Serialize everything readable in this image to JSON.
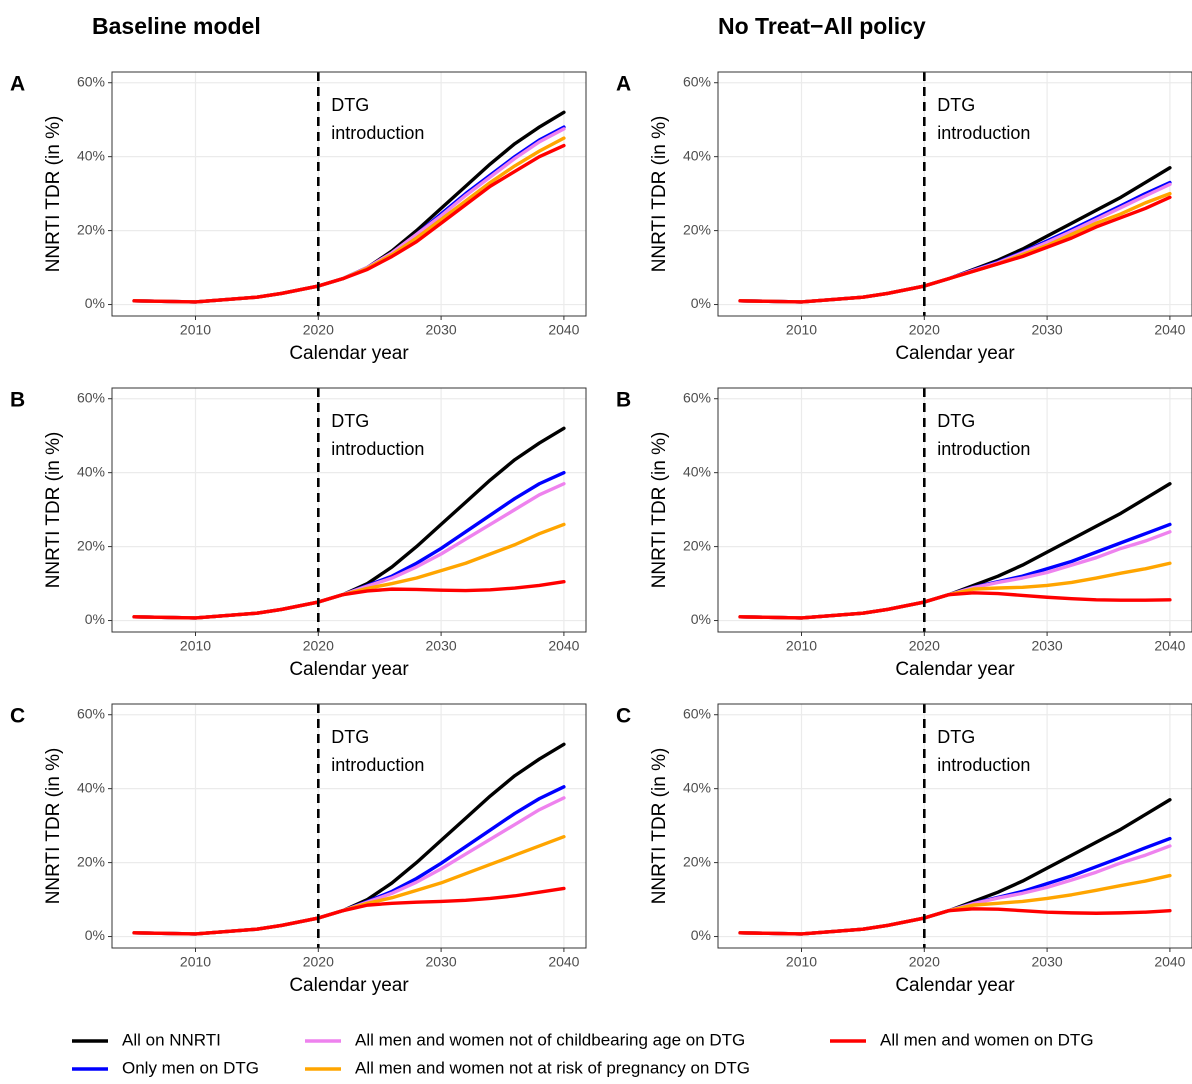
{
  "column_titles": [
    "Baseline model",
    "No Treat−All policy"
  ],
  "legend": [
    {
      "name": "All on NNRTI",
      "color": "#000000"
    },
    {
      "name": "Only men on DTG",
      "color": "#0000ff"
    },
    {
      "name": "All men and women not of childbearing age on DTG",
      "color": "#ee82ee"
    },
    {
      "name": "All men and women not at risk of pregnancy on DTG",
      "color": "#ffa500"
    },
    {
      "name": "All men and women on DTG",
      "color": "#ff0000"
    }
  ],
  "chart_data": [
    {
      "type": "line",
      "panel": "A",
      "xlabel": "Calendar year",
      "ylabel": "NNRTI TDR (in %)",
      "annotation": {
        "x": 2020,
        "lines": [
          "DTG",
          "introduction"
        ]
      },
      "x": [
        2005,
        2010,
        2015,
        2017,
        2020,
        2022,
        2024,
        2026,
        2028,
        2030,
        2032,
        2034,
        2036,
        2038,
        2040
      ],
      "series": [
        {
          "values": [
            1,
            0.7,
            2,
            3,
            5,
            7,
            10,
            14.5,
            20,
            26,
            32,
            38,
            43.5,
            48,
            52
          ]
        },
        {
          "values": [
            1,
            0.7,
            2,
            3,
            5,
            7,
            10,
            14,
            19,
            24.5,
            30,
            35,
            40,
            44.5,
            48
          ]
        },
        {
          "values": [
            1,
            0.7,
            2,
            3,
            5,
            7,
            10,
            14,
            19,
            24,
            29.5,
            34.5,
            39.5,
            44,
            47.5
          ]
        },
        {
          "values": [
            1,
            0.7,
            2,
            3,
            5,
            7,
            9.8,
            13.5,
            18,
            23,
            28,
            33,
            37.5,
            41.5,
            45
          ]
        },
        {
          "values": [
            1,
            0.7,
            2,
            3,
            5,
            7,
            9.5,
            13,
            17,
            22,
            27,
            32,
            36,
            40,
            43
          ]
        }
      ],
      "xlim": [
        2003.2,
        2041.8
      ],
      "ylim": [
        -3.1,
        62.9
      ],
      "xticks": [
        2010,
        2020,
        2030,
        2040
      ],
      "yticks": [
        {
          "value": 0,
          "label": "0%"
        },
        {
          "value": 20,
          "label": "20%"
        },
        {
          "value": 40,
          "label": "40%"
        },
        {
          "value": 60,
          "label": "60%"
        }
      ],
      "grid": true
    },
    {
      "type": "line",
      "panel": "A",
      "xlabel": "Calendar year",
      "ylabel": "NNRTI TDR (in %)",
      "annotation": {
        "x": 2020,
        "lines": [
          "DTG",
          "introduction"
        ]
      },
      "x": [
        2005,
        2010,
        2015,
        2017,
        2020,
        2022,
        2024,
        2026,
        2028,
        2030,
        2032,
        2034,
        2036,
        2038,
        2040
      ],
      "series": [
        {
          "values": [
            1,
            0.7,
            2,
            3,
            5,
            7,
            9.5,
            12,
            15,
            18.5,
            22,
            25.5,
            29,
            33,
            37
          ]
        },
        {
          "values": [
            1,
            0.7,
            2,
            3,
            5,
            7,
            9.3,
            11.5,
            14.2,
            17.2,
            20.3,
            23.5,
            26.7,
            30,
            33
          ]
        },
        {
          "values": [
            1,
            0.7,
            2,
            3,
            5,
            7,
            9.2,
            11.3,
            14,
            16.8,
            19.8,
            23,
            26.2,
            29.4,
            32.5
          ]
        },
        {
          "values": [
            1,
            0.7,
            2,
            3,
            5,
            7,
            9,
            11,
            13.5,
            16,
            19,
            22,
            24.5,
            27.5,
            30
          ]
        },
        {
          "values": [
            1,
            0.7,
            2,
            3,
            5,
            7,
            9,
            11,
            13,
            15.5,
            18,
            21,
            23.5,
            26,
            29
          ]
        }
      ],
      "xlim": [
        2003.2,
        2041.8
      ],
      "ylim": [
        -3.1,
        62.9
      ],
      "xticks": [
        2010,
        2020,
        2030,
        2040
      ],
      "yticks": [
        {
          "value": 0,
          "label": "0%"
        },
        {
          "value": 20,
          "label": "20%"
        },
        {
          "value": 40,
          "label": "40%"
        },
        {
          "value": 60,
          "label": "60%"
        }
      ],
      "grid": true
    },
    {
      "type": "line",
      "panel": "B",
      "xlabel": "Calendar year",
      "ylabel": "NNRTI TDR (in %)",
      "annotation": {
        "x": 2020,
        "lines": [
          "DTG",
          "introduction"
        ]
      },
      "x": [
        2005,
        2010,
        2015,
        2017,
        2020,
        2022,
        2024,
        2026,
        2028,
        2030,
        2032,
        2034,
        2036,
        2038,
        2040
      ],
      "series": [
        {
          "values": [
            1,
            0.7,
            2,
            3,
            5,
            7,
            10,
            14.5,
            20,
            26,
            32,
            38,
            43.5,
            48,
            52
          ]
        },
        {
          "values": [
            1,
            0.7,
            2,
            3,
            5,
            7,
            9.5,
            12,
            15.5,
            19.5,
            24,
            28.5,
            33,
            37,
            40
          ]
        },
        {
          "values": [
            1,
            0.7,
            2,
            3,
            5,
            7,
            9.3,
            11.5,
            14.5,
            18,
            22,
            26,
            30,
            34,
            37
          ]
        },
        {
          "values": [
            1,
            0.7,
            2,
            3,
            5,
            7,
            8.7,
            10,
            11.5,
            13.5,
            15.5,
            18,
            20.5,
            23.5,
            26
          ]
        },
        {
          "values": [
            1,
            0.7,
            2,
            3,
            5,
            7,
            8,
            8.5,
            8.4,
            8.2,
            8.1,
            8.3,
            8.8,
            9.5,
            10.5
          ]
        }
      ],
      "xlim": [
        2003.2,
        2041.8
      ],
      "ylim": [
        -3.1,
        62.9
      ],
      "xticks": [
        2010,
        2020,
        2030,
        2040
      ],
      "yticks": [
        {
          "value": 0,
          "label": "0%"
        },
        {
          "value": 20,
          "label": "20%"
        },
        {
          "value": 40,
          "label": "40%"
        },
        {
          "value": 60,
          "label": "60%"
        }
      ],
      "grid": true
    },
    {
      "type": "line",
      "panel": "B",
      "xlabel": "Calendar year",
      "ylabel": "NNRTI TDR (in %)",
      "annotation": {
        "x": 2020,
        "lines": [
          "DTG",
          "introduction"
        ]
      },
      "x": [
        2005,
        2010,
        2015,
        2017,
        2020,
        2022,
        2024,
        2026,
        2028,
        2030,
        2032,
        2034,
        2036,
        2038,
        2040
      ],
      "series": [
        {
          "values": [
            1,
            0.7,
            2,
            3,
            5,
            7,
            9.5,
            12,
            15,
            18.5,
            22,
            25.5,
            29,
            33,
            37
          ]
        },
        {
          "values": [
            1,
            0.7,
            2,
            3,
            5,
            7,
            9,
            10.5,
            12,
            14,
            16,
            18.5,
            21,
            23.5,
            26
          ]
        },
        {
          "values": [
            1,
            0.7,
            2,
            3,
            5,
            7,
            8.9,
            10.3,
            11.5,
            13,
            15,
            17,
            19.5,
            21.5,
            24
          ]
        },
        {
          "values": [
            1,
            0.7,
            2,
            3,
            5,
            7,
            8.5,
            8.8,
            9,
            9.5,
            10.3,
            11.5,
            12.8,
            14,
            15.5
          ]
        },
        {
          "values": [
            1,
            0.7,
            2,
            3,
            5,
            7,
            7.5,
            7.3,
            6.8,
            6.3,
            5.9,
            5.6,
            5.5,
            5.5,
            5.6
          ]
        }
      ],
      "xlim": [
        2003.2,
        2041.8
      ],
      "ylim": [
        -3.1,
        62.9
      ],
      "xticks": [
        2010,
        2020,
        2030,
        2040
      ],
      "yticks": [
        {
          "value": 0,
          "label": "0%"
        },
        {
          "value": 20,
          "label": "20%"
        },
        {
          "value": 40,
          "label": "40%"
        },
        {
          "value": 60,
          "label": "60%"
        }
      ],
      "grid": true
    },
    {
      "type": "line",
      "panel": "C",
      "xlabel": "Calendar year",
      "ylabel": "NNRTI TDR (in %)",
      "annotation": {
        "x": 2020,
        "lines": [
          "DTG",
          "introduction"
        ]
      },
      "x": [
        2005,
        2010,
        2015,
        2017,
        2020,
        2022,
        2024,
        2026,
        2028,
        2030,
        2032,
        2034,
        2036,
        2038,
        2040
      ],
      "series": [
        {
          "values": [
            1,
            0.7,
            2,
            3,
            5,
            7,
            10,
            14.5,
            20,
            26,
            32,
            38,
            43.5,
            48,
            52
          ]
        },
        {
          "values": [
            1,
            0.7,
            2,
            3,
            5,
            7,
            9.5,
            12.2,
            15.7,
            19.8,
            24.3,
            28.8,
            33.3,
            37.3,
            40.5
          ]
        },
        {
          "values": [
            1,
            0.7,
            2,
            3,
            5,
            7,
            9.3,
            11.7,
            14.7,
            18.3,
            22.3,
            26.3,
            30.3,
            34.3,
            37.5
          ]
        },
        {
          "values": [
            1,
            0.7,
            2,
            3,
            5,
            7,
            9,
            10.5,
            12.5,
            14.5,
            17,
            19.5,
            22,
            24.5,
            27
          ]
        },
        {
          "values": [
            1,
            0.7,
            2,
            3,
            5,
            7,
            8.5,
            9,
            9.3,
            9.5,
            9.8,
            10.3,
            11,
            12,
            13
          ]
        }
      ],
      "xlim": [
        2003.2,
        2041.8
      ],
      "ylim": [
        -3.1,
        62.9
      ],
      "xticks": [
        2010,
        2020,
        2030,
        2040
      ],
      "yticks": [
        {
          "value": 0,
          "label": "0%"
        },
        {
          "value": 20,
          "label": "20%"
        },
        {
          "value": 40,
          "label": "40%"
        },
        {
          "value": 60,
          "label": "60%"
        }
      ],
      "grid": true
    },
    {
      "type": "line",
      "panel": "C",
      "xlabel": "Calendar year",
      "ylabel": "NNRTI TDR (in %)",
      "annotation": {
        "x": 2020,
        "lines": [
          "DTG",
          "introduction"
        ]
      },
      "x": [
        2005,
        2010,
        2015,
        2017,
        2020,
        2022,
        2024,
        2026,
        2028,
        2030,
        2032,
        2034,
        2036,
        2038,
        2040
      ],
      "series": [
        {
          "values": [
            1,
            0.7,
            2,
            3,
            5,
            7,
            9.5,
            12,
            15,
            18.5,
            22,
            25.5,
            29,
            33,
            37
          ]
        },
        {
          "values": [
            1,
            0.7,
            2,
            3,
            5,
            7,
            9,
            10.6,
            12.2,
            14.3,
            16.4,
            18.9,
            21.4,
            24,
            26.5
          ]
        },
        {
          "values": [
            1,
            0.7,
            2,
            3,
            5,
            7,
            8.9,
            10.4,
            11.7,
            13.3,
            15.3,
            17.4,
            19.9,
            22,
            24.5
          ]
        },
        {
          "values": [
            1,
            0.7,
            2,
            3,
            5,
            7,
            8.5,
            9,
            9.5,
            10.3,
            11.3,
            12.5,
            13.8,
            15,
            16.5
          ]
        },
        {
          "values": [
            1,
            0.7,
            2,
            3,
            5,
            7,
            7.5,
            7.4,
            7,
            6.6,
            6.4,
            6.3,
            6.4,
            6.6,
            7
          ]
        }
      ],
      "xlim": [
        2003.2,
        2041.8
      ],
      "ylim": [
        -3.1,
        62.9
      ],
      "xticks": [
        2010,
        2020,
        2030,
        2040
      ],
      "yticks": [
        {
          "value": 0,
          "label": "0%"
        },
        {
          "value": 20,
          "label": "20%"
        },
        {
          "value": 40,
          "label": "40%"
        },
        {
          "value": 60,
          "label": "60%"
        }
      ],
      "grid": true
    }
  ]
}
